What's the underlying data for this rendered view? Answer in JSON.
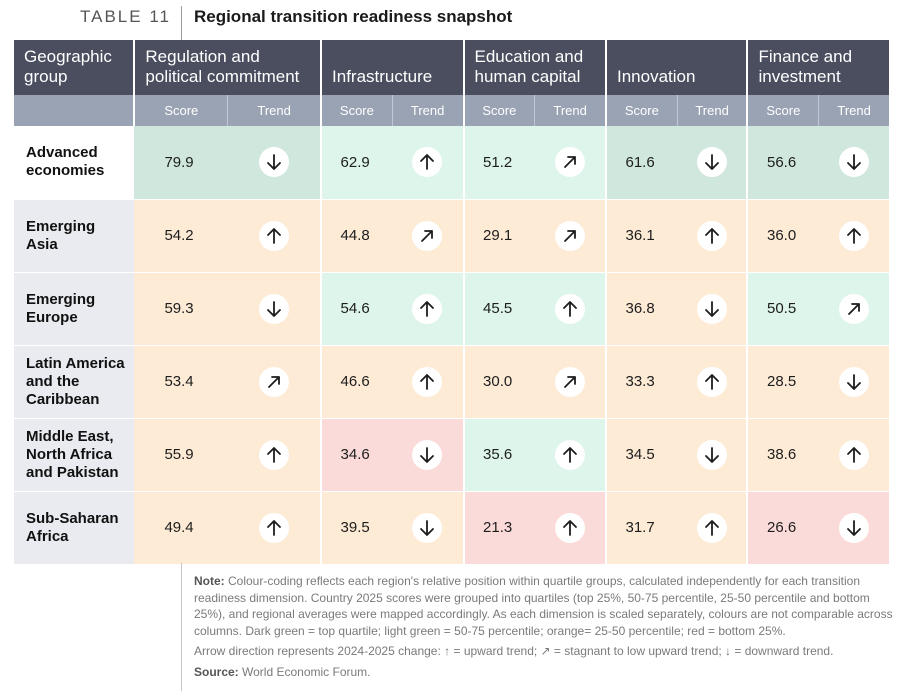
{
  "table_label": "TABLE 11",
  "title": "Regional transition readiness snapshot",
  "columns": {
    "geo": "Geographic group",
    "geo_lines": [
      "Geographic",
      "group"
    ],
    "dimensions": [
      {
        "lines": [
          "Regulation and",
          "political commitment"
        ]
      },
      {
        "lines": [
          "Infrastructure"
        ]
      },
      {
        "lines": [
          "Education and",
          "human capital"
        ]
      },
      {
        "lines": [
          "Innovation"
        ]
      },
      {
        "lines": [
          "Finance and",
          "investment"
        ]
      }
    ],
    "score_label": "Score",
    "trend_label": "Trend"
  },
  "colors": {
    "dark_green": "#cfe7dc",
    "light_green": "#ddf5ea",
    "orange": "#fdebd6",
    "red": "#fbdada",
    "header": "#4a4e5e",
    "subheader": "#9aa3b3"
  },
  "rows": [
    {
      "region_lines": [
        "Advanced",
        "economies"
      ],
      "cells": [
        {
          "score": "79.9",
          "trend": "down",
          "quartile": "dg"
        },
        {
          "score": "62.9",
          "trend": "up",
          "quartile": "lg"
        },
        {
          "score": "51.2",
          "trend": "stagnant",
          "quartile": "lg"
        },
        {
          "score": "61.6",
          "trend": "down",
          "quartile": "dg"
        },
        {
          "score": "56.6",
          "trend": "down",
          "quartile": "dg"
        }
      ]
    },
    {
      "region_lines": [
        "Emerging",
        "Asia"
      ],
      "cells": [
        {
          "score": "54.2",
          "trend": "up",
          "quartile": "or"
        },
        {
          "score": "44.8",
          "trend": "stagnant",
          "quartile": "or"
        },
        {
          "score": "29.1",
          "trend": "stagnant",
          "quartile": "or"
        },
        {
          "score": "36.1",
          "trend": "up",
          "quartile": "or"
        },
        {
          "score": "36.0",
          "trend": "up",
          "quartile": "or"
        }
      ]
    },
    {
      "region_lines": [
        "Emerging",
        "Europe"
      ],
      "cells": [
        {
          "score": "59.3",
          "trend": "down",
          "quartile": "or"
        },
        {
          "score": "54.6",
          "trend": "up",
          "quartile": "lg"
        },
        {
          "score": "45.5",
          "trend": "up",
          "quartile": "lg"
        },
        {
          "score": "36.8",
          "trend": "down",
          "quartile": "or"
        },
        {
          "score": "50.5",
          "trend": "stagnant",
          "quartile": "lg"
        }
      ]
    },
    {
      "region_lines": [
        "Latin America",
        "and the",
        "Caribbean"
      ],
      "cells": [
        {
          "score": "53.4",
          "trend": "stagnant",
          "quartile": "or"
        },
        {
          "score": "46.6",
          "trend": "up",
          "quartile": "or"
        },
        {
          "score": "30.0",
          "trend": "stagnant",
          "quartile": "or"
        },
        {
          "score": "33.3",
          "trend": "up",
          "quartile": "or"
        },
        {
          "score": "28.5",
          "trend": "down",
          "quartile": "or"
        }
      ]
    },
    {
      "region_lines": [
        "Middle East,",
        "North Africa",
        "and Pakistan"
      ],
      "cells": [
        {
          "score": "55.9",
          "trend": "up",
          "quartile": "or"
        },
        {
          "score": "34.6",
          "trend": "down",
          "quartile": "rd"
        },
        {
          "score": "35.6",
          "trend": "up",
          "quartile": "lg"
        },
        {
          "score": "34.5",
          "trend": "down",
          "quartile": "or"
        },
        {
          "score": "38.6",
          "trend": "up",
          "quartile": "or"
        }
      ]
    },
    {
      "region_lines": [
        "Sub-Saharan",
        "Africa"
      ],
      "cells": [
        {
          "score": "49.4",
          "trend": "up",
          "quartile": "or"
        },
        {
          "score": "39.5",
          "trend": "down",
          "quartile": "or"
        },
        {
          "score": "21.3",
          "trend": "up",
          "quartile": "rd"
        },
        {
          "score": "31.7",
          "trend": "up",
          "quartile": "or"
        },
        {
          "score": "26.6",
          "trend": "down",
          "quartile": "rd"
        }
      ]
    }
  ],
  "note": {
    "label": "Note:",
    "text": " Colour-coding reflects each region's relative position within quartile groups, calculated independently for each transition readiness dimension. Country 2025 scores were grouped into quartiles (top 25%, 50-75 percentile, 25-50 percentile and bottom 25%), and regional averages were mapped accordingly. As each dimension is scaled separately, colours are not comparable across columns. Dark green = top quartile; light green = 50-75 percentile; orange= 25-50 percentile; red = bottom 25%.",
    "arrow_text": "Arrow direction represents 2024-2025 change: ↑ = upward trend; ↗ = stagnant to low upward trend; ↓ = downward trend.",
    "source_label": "Source:",
    "source_text": " World Economic Forum."
  }
}
